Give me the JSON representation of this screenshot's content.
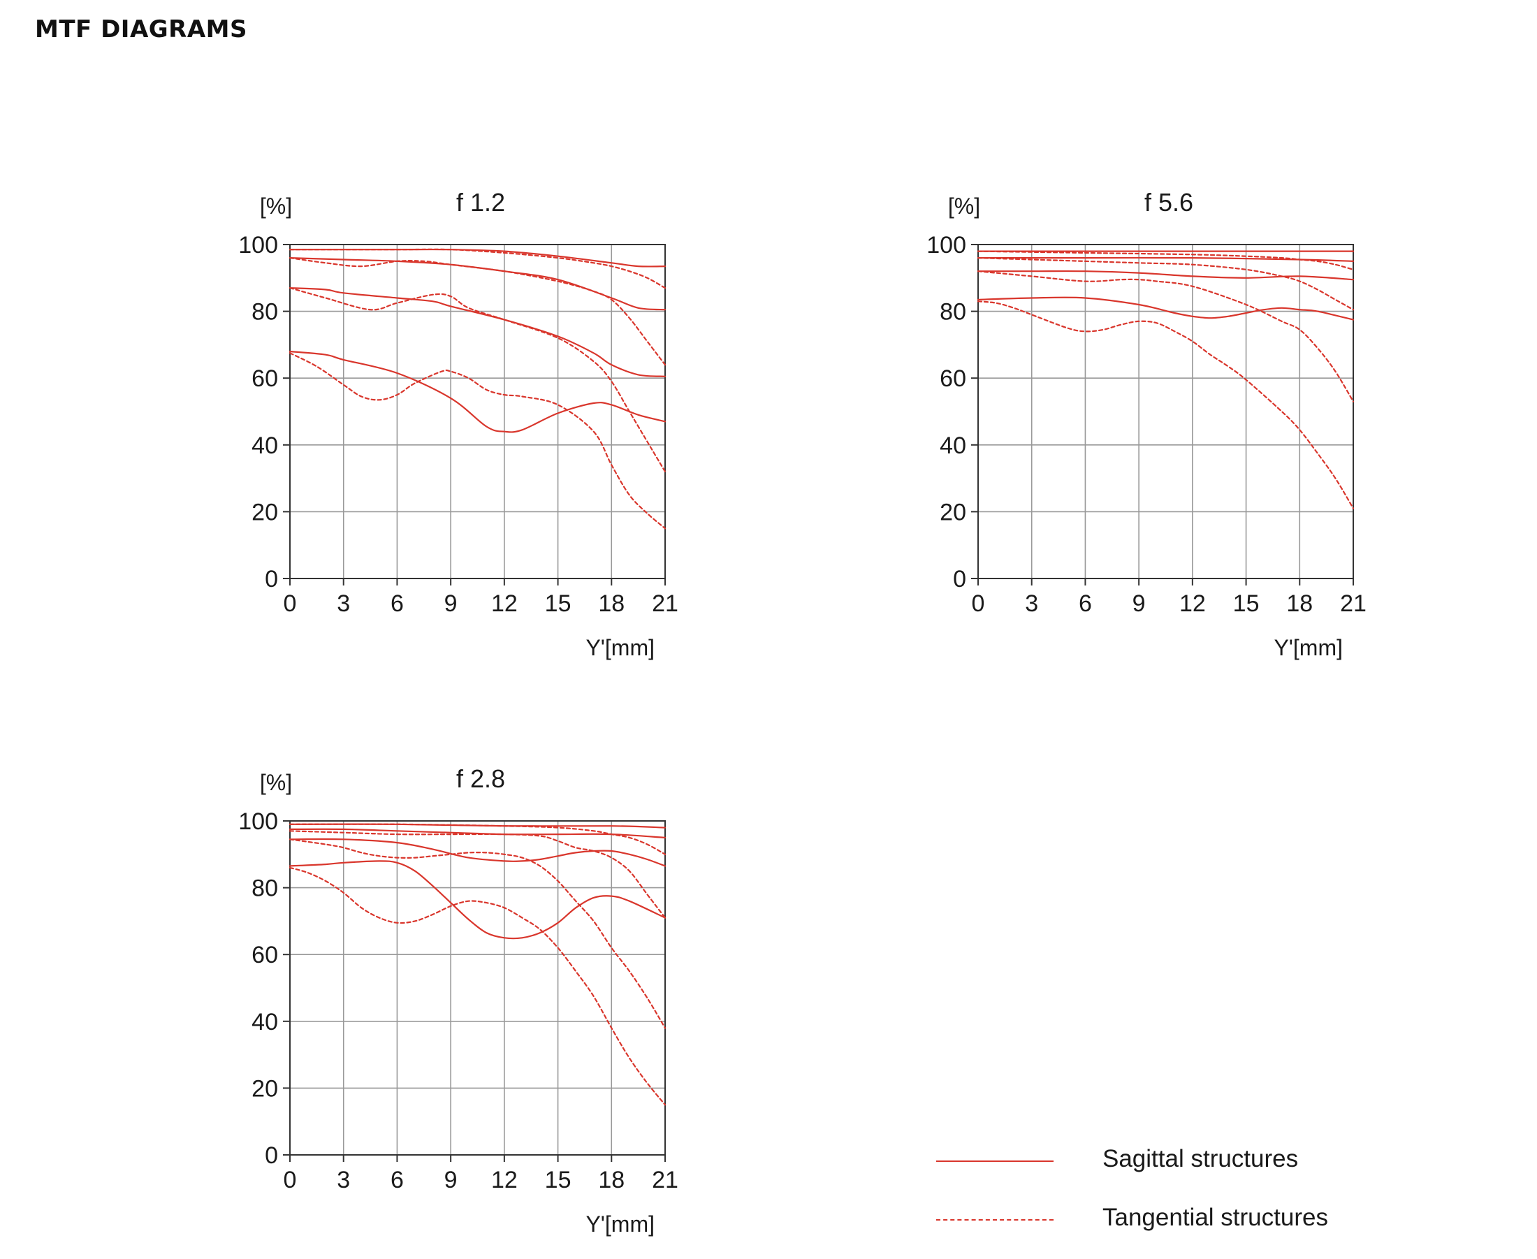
{
  "page": {
    "title": "MTF DIAGRAMS"
  },
  "colors": {
    "curve": "#d9362c",
    "grid": "#999999",
    "axis": "#333333"
  },
  "legend": {
    "sagittal": "Sagittal structures",
    "tangential": "Tangential structures"
  },
  "chart_data": [
    {
      "type": "line",
      "title": "f 1.2",
      "ylabel": "[%]",
      "xlabel": "Y'[mm]",
      "xlim": [
        0,
        21
      ],
      "ylim": [
        0,
        100
      ],
      "xticks": [
        0,
        3,
        6,
        9,
        12,
        15,
        18,
        21
      ],
      "yticks": [
        0,
        20,
        40,
        60,
        80,
        100
      ],
      "grid": true,
      "series": [
        {
          "style": "solid",
          "x": [
            0,
            3,
            6,
            9,
            12,
            15,
            18,
            19.5,
            21
          ],
          "y": [
            98.5,
            98.5,
            98.5,
            98.5,
            98,
            96.5,
            94.5,
            93.5,
            93.5
          ]
        },
        {
          "style": "dashed",
          "x": [
            0,
            3,
            6,
            9,
            12,
            15,
            17,
            18,
            19,
            20,
            21
          ],
          "y": [
            98.5,
            98.5,
            98.5,
            98.5,
            97.5,
            96,
            94.5,
            93.5,
            92,
            90,
            87
          ]
        },
        {
          "style": "solid",
          "x": [
            0,
            3,
            6,
            9,
            12,
            15,
            18,
            19.5,
            21
          ],
          "y": [
            96,
            95.5,
            95,
            94,
            92,
            89.5,
            84,
            81,
            80.5
          ]
        },
        {
          "style": "dashed",
          "x": [
            0,
            2,
            4,
            6,
            7.5,
            9,
            12,
            15,
            17,
            18,
            19,
            20,
            21
          ],
          "y": [
            96,
            94.5,
            93.5,
            95,
            95,
            94,
            92,
            89,
            86,
            83.5,
            78,
            71,
            64
          ]
        },
        {
          "style": "solid",
          "x": [
            0,
            2,
            3,
            6,
            8,
            9,
            12,
            15,
            17,
            18,
            19.5,
            21
          ],
          "y": [
            87,
            86.5,
            85.5,
            84,
            83,
            81.5,
            77.5,
            72.5,
            67.5,
            64,
            61,
            60.5
          ]
        },
        {
          "style": "dashed",
          "x": [
            0,
            2,
            4.5,
            6,
            8,
            9,
            10,
            12,
            15,
            17,
            18,
            19,
            20,
            21
          ],
          "y": [
            87,
            84,
            80.5,
            82.5,
            85,
            84.5,
            81,
            77.5,
            72,
            65,
            59,
            50,
            41,
            32
          ]
        },
        {
          "style": "solid",
          "x": [
            0,
            2,
            3,
            6,
            9,
            11,
            12,
            13,
            15,
            17,
            18,
            19.5,
            21
          ],
          "y": [
            68,
            67,
            65.5,
            61.5,
            54,
            45.5,
            44,
            44.5,
            49.5,
            52.5,
            52,
            49,
            47
          ]
        },
        {
          "style": "dashed",
          "x": [
            0,
            1.5,
            3,
            4,
            5,
            6,
            7,
            8.5,
            9,
            10,
            11,
            12,
            13,
            15,
            17,
            18,
            19,
            20,
            21
          ],
          "y": [
            67.5,
            63.5,
            58,
            54.5,
            53.5,
            55,
            58.5,
            62,
            62,
            60,
            56.5,
            55,
            54.5,
            52,
            44,
            34,
            25,
            19.5,
            15
          ]
        }
      ]
    },
    {
      "type": "line",
      "title": "f 5.6",
      "ylabel": "[%]",
      "xlabel": "Y'[mm]",
      "xlim": [
        0,
        21
      ],
      "ylim": [
        0,
        100
      ],
      "xticks": [
        0,
        3,
        6,
        9,
        12,
        15,
        18,
        21
      ],
      "yticks": [
        0,
        20,
        40,
        60,
        80,
        100
      ],
      "grid": true,
      "series": [
        {
          "style": "solid",
          "x": [
            0,
            6,
            12,
            18,
            21
          ],
          "y": [
            98,
            98,
            98,
            98,
            98
          ]
        },
        {
          "style": "dashed",
          "x": [
            0,
            6,
            12,
            15,
            17,
            18,
            19,
            20,
            21
          ],
          "y": [
            98,
            97.5,
            97,
            96.5,
            96,
            95.5,
            95,
            94,
            92.5
          ]
        },
        {
          "style": "solid",
          "x": [
            0,
            6,
            12,
            18,
            21
          ],
          "y": [
            96,
            96,
            96,
            95.5,
            95
          ]
        },
        {
          "style": "dashed",
          "x": [
            0,
            3,
            6,
            9,
            12,
            15,
            17,
            18,
            19,
            20,
            21
          ],
          "y": [
            96,
            95.5,
            95,
            94.5,
            94,
            92.5,
            90.5,
            89,
            86.5,
            83.5,
            80.5
          ]
        },
        {
          "style": "solid",
          "x": [
            0,
            3,
            6,
            9,
            12,
            15,
            18,
            21
          ],
          "y": [
            92,
            92,
            92,
            91.5,
            90.5,
            90,
            90.5,
            89.5
          ]
        },
        {
          "style": "dashed",
          "x": [
            0,
            3,
            6,
            8,
            9,
            10,
            12,
            15,
            17,
            18,
            19,
            20,
            21
          ],
          "y": [
            92,
            90.5,
            89,
            89.5,
            89.5,
            89,
            87.5,
            82,
            77,
            74.5,
            69,
            62,
            53
          ]
        },
        {
          "style": "solid",
          "x": [
            0,
            3,
            6,
            9,
            11,
            12,
            13,
            14,
            15,
            16,
            17,
            18,
            19,
            21
          ],
          "y": [
            83.5,
            84,
            84,
            82,
            79.5,
            78.5,
            78,
            78.5,
            79.5,
            80.5,
            81,
            80.5,
            80,
            77.5
          ]
        },
        {
          "style": "dashed",
          "x": [
            0,
            1,
            2,
            3,
            5,
            6,
            7,
            8,
            9,
            10,
            11,
            12,
            13,
            14,
            15,
            17,
            18,
            19,
            20,
            21
          ],
          "y": [
            83,
            82.5,
            81,
            79,
            75,
            74,
            74.5,
            76,
            77,
            76.5,
            74,
            71,
            67,
            63.5,
            59.5,
            50,
            44.5,
            37.5,
            30,
            21
          ]
        }
      ]
    },
    {
      "type": "line",
      "title": "f 2.8",
      "ylabel": "[%]",
      "xlabel": "Y'[mm]",
      "xlim": [
        0,
        21
      ],
      "ylim": [
        0,
        100
      ],
      "xticks": [
        0,
        3,
        6,
        9,
        12,
        15,
        18,
        21
      ],
      "yticks": [
        0,
        20,
        40,
        60,
        80,
        100
      ],
      "grid": true,
      "series": [
        {
          "style": "solid",
          "x": [
            0,
            6,
            12,
            18,
            21
          ],
          "y": [
            99,
            99,
            98.5,
            98.5,
            98
          ]
        },
        {
          "style": "dashed",
          "x": [
            0,
            6,
            12,
            15,
            17,
            18,
            19,
            20,
            21
          ],
          "y": [
            99,
            99,
            98.5,
            98,
            97,
            96,
            95,
            93,
            90
          ]
        },
        {
          "style": "solid",
          "x": [
            0,
            3,
            6,
            9,
            12,
            15,
            18,
            21
          ],
          "y": [
            97.5,
            97.5,
            97,
            96.5,
            96,
            96,
            96,
            95
          ]
        },
        {
          "style": "dashed",
          "x": [
            0,
            3,
            6,
            9,
            12,
            14,
            15,
            16,
            17,
            18,
            19,
            20,
            21
          ],
          "y": [
            97,
            96.5,
            96,
            96,
            96,
            95.5,
            94,
            92,
            91,
            89,
            85,
            78,
            71
          ]
        },
        {
          "style": "solid",
          "x": [
            0,
            3,
            6,
            8,
            10,
            12,
            13,
            14,
            15,
            16,
            17,
            18,
            19,
            20,
            21
          ],
          "y": [
            94.5,
            94.5,
            93.5,
            91.5,
            89,
            88,
            88,
            88.5,
            89.5,
            90.5,
            91,
            91,
            90,
            88.5,
            86.5
          ]
        },
        {
          "style": "dashed",
          "x": [
            0,
            2,
            3,
            4,
            5,
            6,
            7,
            8,
            9,
            10,
            11,
            12,
            13,
            14,
            15,
            16,
            17,
            18,
            19,
            20,
            21
          ],
          "y": [
            94.5,
            93,
            92,
            90.5,
            89.5,
            89,
            89,
            89.5,
            90,
            90.5,
            90.5,
            90,
            89,
            86.5,
            82,
            76,
            70,
            62,
            55,
            47,
            38
          ]
        },
        {
          "style": "solid",
          "x": [
            0,
            2,
            3,
            5,
            6,
            7,
            8,
            9,
            10,
            11,
            12,
            13,
            14,
            15,
            16,
            17,
            18,
            19,
            21
          ],
          "y": [
            86.5,
            87,
            87.5,
            88,
            87.5,
            85,
            80.5,
            75.5,
            70.5,
            66.5,
            65,
            65,
            66.5,
            69.5,
            74,
            77,
            77.5,
            76,
            71
          ]
        },
        {
          "style": "dashed",
          "x": [
            0,
            1,
            2,
            3,
            4,
            5,
            6,
            7,
            8,
            9,
            10,
            11,
            12,
            13,
            14,
            15,
            16,
            17,
            18,
            19,
            20,
            21
          ],
          "y": [
            86,
            84.5,
            82,
            78.5,
            74,
            71,
            69.5,
            70,
            72,
            74.5,
            76,
            75.5,
            74,
            71,
            67.5,
            62,
            55,
            47.5,
            38,
            29,
            21.5,
            15
          ]
        }
      ]
    }
  ]
}
